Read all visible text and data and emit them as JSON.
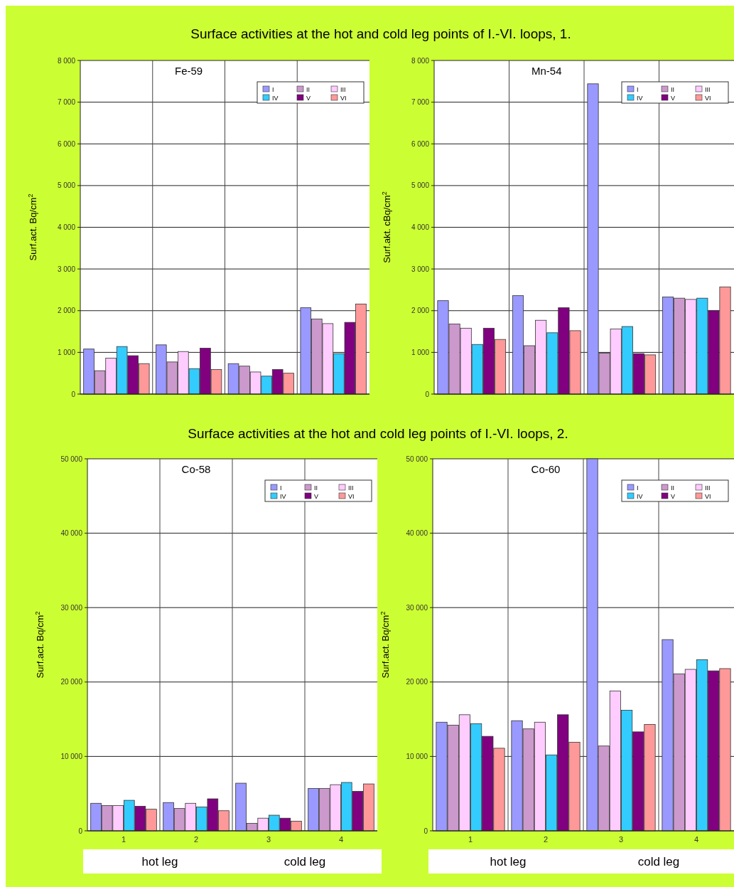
{
  "chart_data": [
    {
      "type": "bar",
      "title": "Surface activities at the hot and cold leg points of I.-VI. loops, 1.",
      "subtitle": "Fe-59",
      "ylabel": "Surf.act. Bq/cm$^{2}$",
      "categories": [
        null,
        null,
        null,
        null
      ],
      "ylim": [
        0,
        8000
      ],
      "yticks": [
        {
          "value": 0,
          "label": "0"
        },
        {
          "value": 1000,
          "label": "1 000"
        },
        {
          "value": 2000,
          "label": "2 000"
        },
        {
          "value": 3000,
          "label": "3 000"
        },
        {
          "value": 4000,
          "label": "4 000"
        },
        {
          "value": 5000,
          "label": "5 000"
        },
        {
          "value": 6000,
          "label": "6 000"
        },
        {
          "value": 7000,
          "label": "7 000"
        },
        {
          "value": 8000,
          "label": "8 000"
        }
      ],
      "grid": true,
      "legend": "top right",
      "tick_labels": "y",
      "series": [
        {
          "name": "I",
          "color": "#9999ff",
          "values": [
            1080,
            1180,
            730,
            2070
          ]
        },
        {
          "name": "II",
          "color": "#cc99cc",
          "values": [
            560,
            770,
            670,
            1800
          ]
        },
        {
          "name": "III",
          "color": "#ffccff",
          "values": [
            860,
            1020,
            530,
            1690
          ]
        },
        {
          "name": "IV",
          "color": "#33ccff",
          "values": [
            1140,
            610,
            430,
            970
          ]
        },
        {
          "name": "V",
          "color": "#800080",
          "values": [
            920,
            1100,
            590,
            1720
          ]
        },
        {
          "name": "VI",
          "color": "#ff9999",
          "values": [
            730,
            590,
            500,
            2160
          ]
        }
      ]
    },
    {
      "type": "bar",
      "subtitle": "Mn-54",
      "ylabel": "Surf.akt. cBq/cm$^{2}$",
      "categories": [
        null,
        null,
        null,
        null
      ],
      "ylim": [
        0,
        8000
      ],
      "yticks": [
        {
          "value": 0,
          "label": "0"
        },
        {
          "value": 1000,
          "label": "1 000"
        },
        {
          "value": 2000,
          "label": "2 000"
        },
        {
          "value": 3000,
          "label": "3 000"
        },
        {
          "value": 4000,
          "label": "4 000"
        },
        {
          "value": 5000,
          "label": "5 000"
        },
        {
          "value": 6000,
          "label": "6 000"
        },
        {
          "value": 7000,
          "label": "7 000"
        },
        {
          "value": 8000,
          "label": "8 000"
        }
      ],
      "grid": true,
      "legend": "top right",
      "tick_labels": "y",
      "series": [
        {
          "name": "I",
          "color": "#9999ff",
          "values": [
            2240,
            2360,
            7440,
            2330
          ]
        },
        {
          "name": "II",
          "color": "#cc99cc",
          "values": [
            1680,
            1160,
            980,
            2300
          ]
        },
        {
          "name": "III",
          "color": "#ffccff",
          "values": [
            1580,
            1770,
            1560,
            2270
          ]
        },
        {
          "name": "IV",
          "color": "#33ccff",
          "values": [
            1190,
            1470,
            1620,
            2300
          ]
        },
        {
          "name": "V",
          "color": "#800080",
          "values": [
            1580,
            2070,
            970,
            2000
          ]
        },
        {
          "name": "VI",
          "color": "#ff9999",
          "values": [
            1310,
            1520,
            940,
            2570
          ]
        }
      ]
    },
    {
      "type": "bar",
      "title": "Surface activities at the hot and cold leg points of I.-VI. loops, 2.",
      "subtitle": "Co-58",
      "ylabel": "Surf.act. Bq/cm$^{2}$",
      "categories": [
        "1",
        "2",
        "3",
        "4"
      ],
      "ylim": [
        0,
        50000
      ],
      "yticks": [
        {
          "value": 0,
          "label": "0"
        },
        {
          "value": 10000,
          "label": "10 000"
        },
        {
          "value": 20000,
          "label": "20 000"
        },
        {
          "value": 30000,
          "label": "30 000"
        },
        {
          "value": 40000,
          "label": "40 000"
        },
        {
          "value": 50000,
          "label": "50 000"
        }
      ],
      "grid": true,
      "legend": "top right",
      "annotations": [
        "hot leg",
        "cold leg"
      ],
      "series": [
        {
          "name": "I",
          "color": "#9999ff",
          "values": [
            3700,
            3800,
            6400,
            5700
          ]
        },
        {
          "name": "II",
          "color": "#cc99cc",
          "values": [
            3400,
            3000,
            1000,
            5700
          ]
        },
        {
          "name": "III",
          "color": "#ffccff",
          "values": [
            3400,
            3700,
            1700,
            6200
          ]
        },
        {
          "name": "IV",
          "color": "#33ccff",
          "values": [
            4100,
            3200,
            2100,
            6500
          ]
        },
        {
          "name": "V",
          "color": "#800080",
          "values": [
            3300,
            4300,
            1700,
            5300
          ]
        },
        {
          "name": "VI",
          "color": "#ff9999",
          "values": [
            2900,
            2700,
            1300,
            6300
          ]
        }
      ]
    },
    {
      "type": "bar",
      "subtitle": "Co-60",
      "ylabel": "Surf.act. Bq/cm$^{2}$",
      "categories": [
        "1",
        "2",
        "3",
        "4"
      ],
      "ylim": [
        0,
        50000
      ],
      "yticks": [
        {
          "value": 0,
          "label": "0"
        },
        {
          "value": 10000,
          "label": "10 000"
        },
        {
          "value": 20000,
          "label": "20 000"
        },
        {
          "value": 30000,
          "label": "30 000"
        },
        {
          "value": 40000,
          "label": "40 000"
        },
        {
          "value": 50000,
          "label": "50 000"
        }
      ],
      "grid": true,
      "legend": "top right",
      "annotations": [
        "hot leg",
        "cold leg"
      ],
      "series": [
        {
          "name": "I",
          "color": "#9999ff",
          "values": [
            14600,
            14800,
            50000,
            25700
          ]
        },
        {
          "name": "II",
          "color": "#cc99cc",
          "values": [
            14200,
            13700,
            11400,
            21100
          ]
        },
        {
          "name": "III",
          "color": "#ffccff",
          "values": [
            15600,
            14600,
            18800,
            21700
          ]
        },
        {
          "name": "IV",
          "color": "#33ccff",
          "values": [
            14400,
            10200,
            16200,
            23000
          ]
        },
        {
          "name": "V",
          "color": "#800080",
          "values": [
            12700,
            15600,
            13300,
            21500
          ]
        },
        {
          "name": "VI",
          "color": "#ff9999",
          "values": [
            11100,
            11900,
            14300,
            21800
          ]
        }
      ]
    }
  ]
}
